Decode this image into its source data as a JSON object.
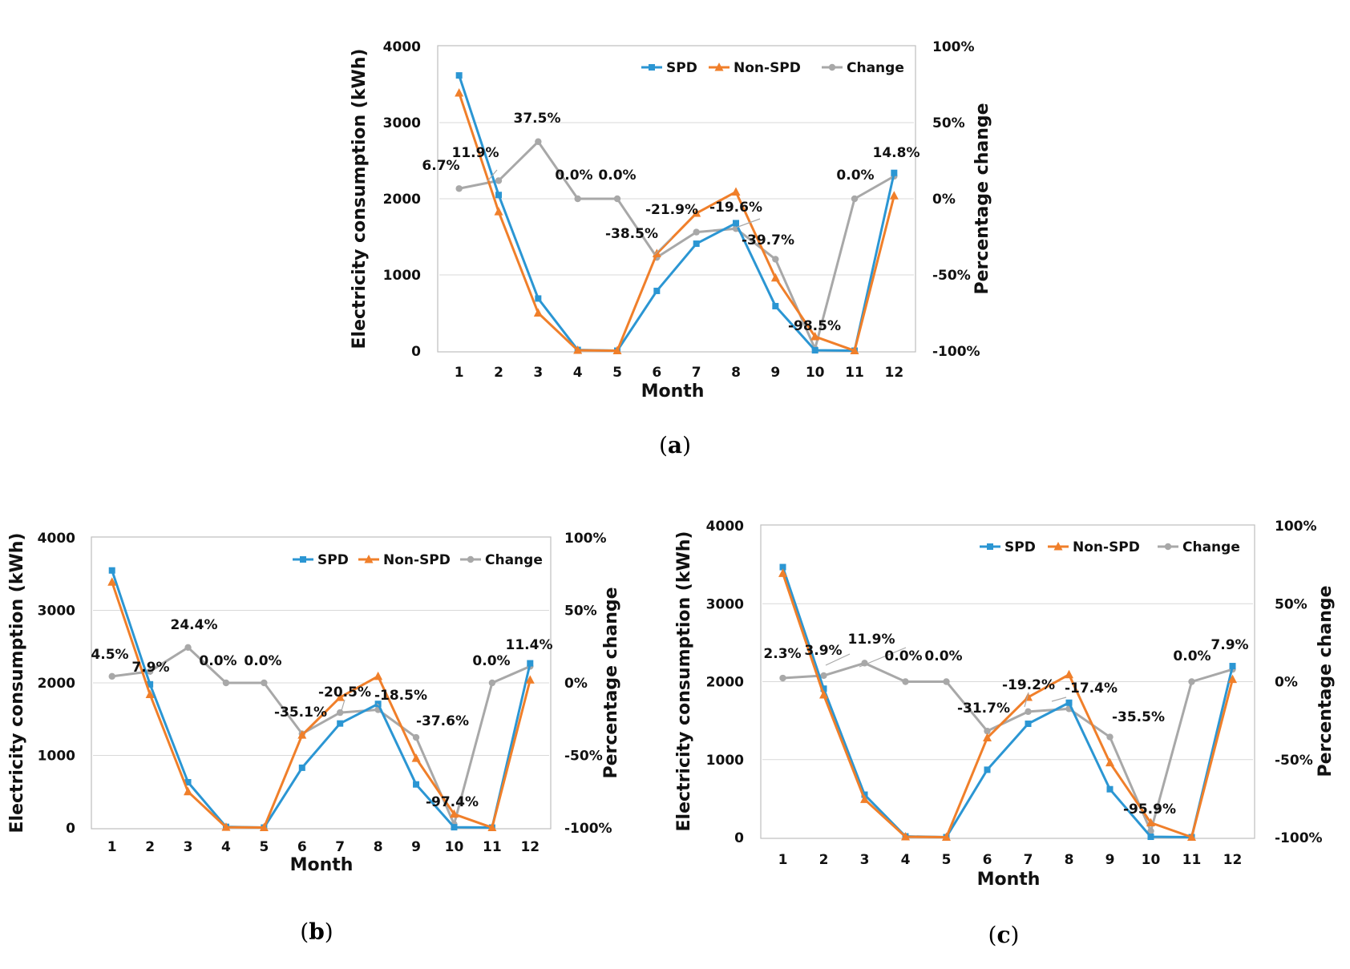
{
  "colors": {
    "spd": "#2b96d3",
    "non_spd": "#f07f2a",
    "change": "#a8a8a8",
    "grid": "#d9d9d9",
    "frame": "#bfbfbf"
  },
  "chart_data": [
    {
      "panel": "a",
      "caption": "a",
      "type": "line",
      "xlabel": "Month",
      "ylabel": "Electricity consumption (kWh)",
      "y2label": "Percentage change",
      "categories": [
        "1",
        "2",
        "3",
        "4",
        "5",
        "6",
        "7",
        "8",
        "9",
        "10",
        "11",
        "12"
      ],
      "ylim": [
        0,
        4000
      ],
      "yticks": [
        "0",
        "1000",
        "2000",
        "3000",
        "4000"
      ],
      "y2lim": [
        -100,
        100
      ],
      "y2ticks": [
        "-100%",
        "-50%",
        "0%",
        "50%",
        "100%"
      ],
      "legend": [
        "SPD",
        "Non-SPD",
        "Change"
      ],
      "series": [
        {
          "name": "SPD",
          "axis": "left",
          "values": [
            3620,
            2050,
            690,
            15,
            5,
            790,
            1410,
            1680,
            590,
            10,
            5,
            2340
          ]
        },
        {
          "name": "Non-SPD",
          "axis": "left",
          "values": [
            3390,
            1830,
            500,
            10,
            5,
            1280,
            1810,
            2090,
            960,
            190,
            5,
            2040
          ]
        },
        {
          "name": "Change",
          "axis": "right",
          "values": [
            6.7,
            11.9,
            37.5,
            0.0,
            0.0,
            -38.5,
            -21.9,
            -19.6,
            -39.7,
            -98.5,
            0.0,
            14.8
          ],
          "labels": [
            "6.7%",
            "11.9%",
            "37.5%",
            "0.0%",
            "0.0%",
            "-38.5%",
            "-21.9%",
            "-19.6%",
            "-39.7%",
            "-98.5%",
            "0.0%",
            "14.8%"
          ]
        }
      ]
    },
    {
      "panel": "b",
      "caption": "b",
      "type": "line",
      "xlabel": "Month",
      "ylabel": "Electricity consumption (kWh)",
      "y2label": "Percentage change",
      "categories": [
        "1",
        "2",
        "3",
        "4",
        "5",
        "6",
        "7",
        "8",
        "9",
        "10",
        "11",
        "12"
      ],
      "ylim": [
        0,
        4000
      ],
      "yticks": [
        "0",
        "1000",
        "2000",
        "3000",
        "4000"
      ],
      "y2lim": [
        -100,
        100
      ],
      "y2ticks": [
        "-100%",
        "-50%",
        "0%",
        "50%",
        "100%"
      ],
      "legend": [
        "SPD",
        "Non-SPD",
        "Change"
      ],
      "series": [
        {
          "name": "SPD",
          "axis": "left",
          "values": [
            3550,
            1980,
            630,
            15,
            5,
            830,
            1440,
            1710,
            600,
            10,
            5,
            2270
          ]
        },
        {
          "name": "Non-SPD",
          "axis": "left",
          "values": [
            3390,
            1840,
            500,
            10,
            5,
            1280,
            1800,
            2090,
            960,
            190,
            5,
            2040
          ]
        },
        {
          "name": "Change",
          "axis": "right",
          "values": [
            4.5,
            7.9,
            24.4,
            0.0,
            0.0,
            -35.1,
            -20.5,
            -18.5,
            -37.6,
            -97.4,
            0.0,
            11.4
          ],
          "labels": [
            "4.5%",
            "7.9%",
            "24.4%",
            "0.0%",
            "0.0%",
            "-35.1%",
            "-20.5%",
            "-18.5%",
            "-37.6%",
            "-97.4%",
            "0.0%",
            "11.4%"
          ]
        }
      ]
    },
    {
      "panel": "c",
      "caption": "c",
      "type": "line",
      "xlabel": "Month",
      "ylabel": "Electricity consumption (kWh)",
      "y2label": "Percentage change",
      "categories": [
        "1",
        "2",
        "3",
        "4",
        "5",
        "6",
        "7",
        "8",
        "9",
        "10",
        "11",
        "12"
      ],
      "ylim": [
        0,
        4000
      ],
      "yticks": [
        "0",
        "1000",
        "2000",
        "3000",
        "4000"
      ],
      "y2lim": [
        -100,
        100
      ],
      "y2ticks": [
        "-100%",
        "-50%",
        "0%",
        "50%",
        "100%"
      ],
      "legend": [
        "SPD",
        "Non-SPD",
        "Change"
      ],
      "series": [
        {
          "name": "SPD",
          "axis": "left",
          "values": [
            3470,
            1910,
            550,
            15,
            5,
            870,
            1460,
            1730,
            620,
            10,
            5,
            2200
          ]
        },
        {
          "name": "Non-SPD",
          "axis": "left",
          "values": [
            3390,
            1830,
            490,
            10,
            5,
            1280,
            1800,
            2090,
            960,
            190,
            5,
            2030
          ]
        },
        {
          "name": "Change",
          "axis": "right",
          "values": [
            2.3,
            3.9,
            11.9,
            0.0,
            0.0,
            -31.7,
            -19.2,
            -17.4,
            -35.5,
            -95.9,
            0.0,
            7.9
          ],
          "labels": [
            "2.3%",
            "3.9%",
            "11.9%",
            "0.0%",
            "0.0%",
            "-31.7%",
            "-19.2%",
            "-17.4%",
            "-35.5%",
            "-95.9%",
            "0.0%",
            "7.9%"
          ]
        }
      ]
    }
  ]
}
